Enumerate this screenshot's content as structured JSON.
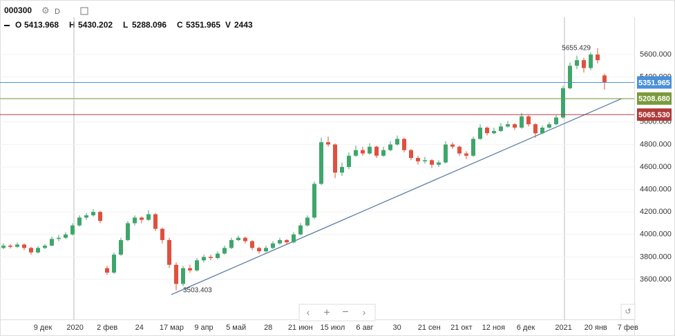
{
  "chart_data": {
    "type": "candlestick",
    "title": "000300",
    "interval": "D",
    "ohlc_labels": [
      "O",
      "H",
      "L",
      "C"
    ],
    "volume_label": "V",
    "volume": 2443,
    "up_color": "#3fa66b",
    "down_color": "#e0503e",
    "ylim": [
      3244,
      6085
    ],
    "yticks": [
      {
        "value": 3600,
        "label": "3600.000"
      },
      {
        "value": 3800,
        "label": "3800.000"
      },
      {
        "value": 4000,
        "label": "4000.000"
      },
      {
        "value": 4200,
        "label": "4200.000"
      },
      {
        "value": 4400,
        "label": "4400.000"
      },
      {
        "value": 4600,
        "label": "4600.000"
      },
      {
        "value": 4800,
        "label": "4800.000"
      },
      {
        "value": 5000,
        "label": "5000.000"
      },
      {
        "value": 5200,
        "label": "5200.000"
      },
      {
        "value": 5400,
        "label": "5400.000"
      },
      {
        "value": 5600,
        "label": "5600.000"
      }
    ],
    "x_labels": [
      "9 дек",
      "2020",
      "2 фев",
      "24",
      "17 мар",
      "9 апр",
      "5 май",
      "28",
      "21 июн",
      "15 июл",
      "6 авг",
      "30",
      "21 сен",
      "21 окт",
      "12 ноя",
      "6 дек",
      "2021",
      "20 янв",
      "7 фев"
    ],
    "price_lines": [
      {
        "value": 5351.965,
        "color": "#4a90d9"
      },
      {
        "value": 5208.68,
        "label": "5208.680",
        "color": "#7a9a3a"
      },
      {
        "value": 5065.53,
        "label": "5065.530",
        "color": "#b03a3a"
      }
    ],
    "trendline": {
      "from": [
        24.3,
        3465
      ],
      "to": [
        89.5,
        5208.68
      ],
      "color": "#5b7fa6"
    },
    "candles": [
      [
        3880,
        3920,
        3870,
        3900
      ],
      [
        3900,
        3915,
        3875,
        3890
      ],
      [
        3890,
        3930,
        3880,
        3910
      ],
      [
        3910,
        3920,
        3860,
        3880
      ],
      [
        3880,
        3890,
        3820,
        3840
      ],
      [
        3840,
        3895,
        3830,
        3880
      ],
      [
        3880,
        3915,
        3870,
        3900
      ],
      [
        3900,
        3980,
        3895,
        3960
      ],
      [
        3960,
        3995,
        3940,
        3970
      ],
      [
        3970,
        4020,
        3960,
        4000
      ],
      [
        4000,
        4100,
        3990,
        4080
      ],
      [
        4080,
        4170,
        4070,
        4150
      ],
      [
        4150,
        4190,
        4130,
        4170
      ],
      [
        4170,
        4225,
        4160,
        4200
      ],
      [
        4200,
        4210,
        4100,
        4120
      ],
      [
        3700,
        3720,
        3640,
        3660
      ],
      [
        3660,
        3840,
        3650,
        3820
      ],
      [
        3820,
        3970,
        3810,
        3950
      ],
      [
        3950,
        4120,
        3940,
        4100
      ],
      [
        4100,
        4170,
        4080,
        4150
      ],
      [
        4150,
        4160,
        4100,
        4130
      ],
      [
        4130,
        4215,
        4120,
        4180
      ],
      [
        4180,
        4190,
        4030,
        4050
      ],
      [
        4050,
        4060,
        3920,
        3950
      ],
      [
        3950,
        3970,
        3700,
        3730
      ],
      [
        3730,
        3750,
        3503.403,
        3560
      ],
      [
        3560,
        3720,
        3540,
        3700
      ],
      [
        3700,
        3730,
        3660,
        3680
      ],
      [
        3680,
        3790,
        3670,
        3770
      ],
      [
        3770,
        3820,
        3750,
        3800
      ],
      [
        3800,
        3820,
        3770,
        3790
      ],
      [
        3790,
        3850,
        3780,
        3830
      ],
      [
        3830,
        3900,
        3820,
        3880
      ],
      [
        3880,
        3970,
        3870,
        3950
      ],
      [
        3950,
        3990,
        3940,
        3970
      ],
      [
        3970,
        3980,
        3920,
        3940
      ],
      [
        3940,
        3950,
        3860,
        3880
      ],
      [
        3880,
        3890,
        3830,
        3850
      ],
      [
        3850,
        3900,
        3840,
        3880
      ],
      [
        3880,
        3940,
        3870,
        3920
      ],
      [
        3920,
        3970,
        3910,
        3950
      ],
      [
        3950,
        3960,
        3910,
        3930
      ],
      [
        3930,
        4020,
        3920,
        4000
      ],
      [
        4000,
        4100,
        3990,
        4080
      ],
      [
        4080,
        4170,
        4070,
        4150
      ],
      [
        4150,
        4470,
        4140,
        4450
      ],
      [
        4450,
        4860,
        4440,
        4820
      ],
      [
        4820,
        4870,
        4780,
        4800
      ],
      [
        4800,
        4810,
        4500,
        4550
      ],
      [
        4550,
        4640,
        4520,
        4600
      ],
      [
        4600,
        4730,
        4580,
        4700
      ],
      [
        4700,
        4790,
        4690,
        4750
      ],
      [
        4750,
        4780,
        4700,
        4720
      ],
      [
        4720,
        4810,
        4710,
        4780
      ],
      [
        4780,
        4790,
        4680,
        4700
      ],
      [
        4700,
        4780,
        4690,
        4750
      ],
      [
        4750,
        4830,
        4740,
        4800
      ],
      [
        4800,
        4880,
        4790,
        4850
      ],
      [
        4850,
        4860,
        4730,
        4750
      ],
      [
        4750,
        4760,
        4660,
        4680
      ],
      [
        4680,
        4700,
        4620,
        4650
      ],
      [
        4650,
        4690,
        4630,
        4660
      ],
      [
        4660,
        4670,
        4590,
        4620
      ],
      [
        4620,
        4660,
        4600,
        4640
      ],
      [
        4640,
        4830,
        4630,
        4800
      ],
      [
        4800,
        4820,
        4760,
        4780
      ],
      [
        4780,
        4790,
        4700,
        4720
      ],
      [
        4720,
        4740,
        4670,
        4700
      ],
      [
        4700,
        4870,
        4690,
        4850
      ],
      [
        4850,
        4980,
        4840,
        4950
      ],
      [
        4950,
        4960,
        4880,
        4900
      ],
      [
        4900,
        4950,
        4890,
        4920
      ],
      [
        4920,
        4990,
        4910,
        4960
      ],
      [
        4960,
        5010,
        4950,
        4980
      ],
      [
        4980,
        4990,
        4930,
        4950
      ],
      [
        4950,
        5080,
        4940,
        5050
      ],
      [
        5050,
        5060,
        4960,
        4980
      ],
      [
        4980,
        4990,
        4860,
        4900
      ],
      [
        4900,
        4970,
        4890,
        4950
      ],
      [
        4950,
        5000,
        4940,
        4980
      ],
      [
        4980,
        5060,
        4970,
        5040
      ],
      [
        5040,
        5320,
        5030,
        5300
      ],
      [
        5300,
        5530,
        5290,
        5500
      ],
      [
        5500,
        5590,
        5470,
        5550
      ],
      [
        5550,
        5570,
        5440,
        5480
      ],
      [
        5480,
        5620,
        5460,
        5600
      ],
      [
        5600,
        5655.429,
        5520,
        5550
      ],
      [
        5413.968,
        5430.202,
        5288.096,
        5351.965
      ]
    ]
  }
}
